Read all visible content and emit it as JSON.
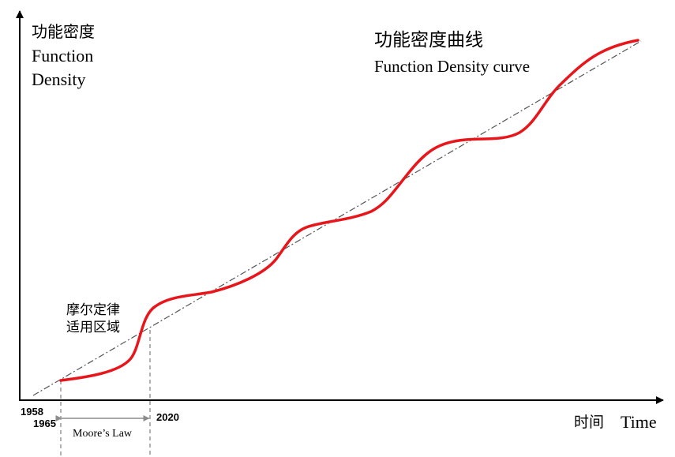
{
  "y_axis": {
    "label_cn": "功能密度",
    "label_en_line1": "Function",
    "label_en_line2": "Density"
  },
  "x_axis": {
    "label_cn": "时间",
    "label_en": "Time"
  },
  "title": {
    "cn": "功能密度曲线",
    "en": "Function Density curve"
  },
  "annotation": {
    "line1": "摩尔定律",
    "line2": "适用区域"
  },
  "years": {
    "y1958": "1958",
    "y1965": "1965",
    "y2020": "2020"
  },
  "moores_law_label": "Moore’s Law",
  "colors": {
    "curve": "#e8161b",
    "trend": "#555555",
    "axis": "#000000",
    "guide": "#7f7f7f"
  }
}
